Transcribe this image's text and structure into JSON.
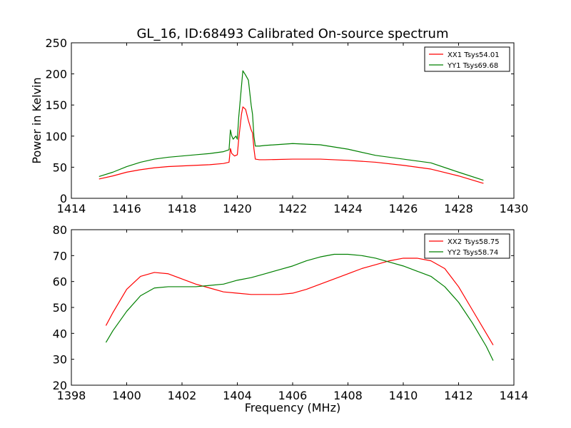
{
  "figure": {
    "title": "GL_16, ID:68493 Calibrated On-source spectrum"
  },
  "chart_data": [
    {
      "type": "line",
      "title": "GL_16, ID:68493 Calibrated On-source spectrum",
      "xlabel": "",
      "ylabel": "Power in Kelvin",
      "xlim": [
        1414,
        1430
      ],
      "ylim": [
        0,
        250
      ],
      "xticks": [
        1414,
        1416,
        1418,
        1420,
        1422,
        1424,
        1426,
        1428,
        1430
      ],
      "yticks": [
        0,
        50,
        100,
        150,
        200,
        250
      ],
      "grid": false,
      "legend_position": "top-right",
      "series": [
        {
          "name": "XX1 Tsys54.01",
          "color": "#ff0000",
          "points": [
            [
              1415.0,
              31
            ],
            [
              1415.5,
              36
            ],
            [
              1416.0,
              42
            ],
            [
              1416.5,
              46
            ],
            [
              1417.0,
              49
            ],
            [
              1417.5,
              51
            ],
            [
              1418.0,
              52
            ],
            [
              1418.5,
              53
            ],
            [
              1419.0,
              54
            ],
            [
              1419.5,
              56
            ],
            [
              1419.7,
              58
            ],
            [
              1419.75,
              80
            ],
            [
              1419.8,
              72
            ],
            [
              1419.9,
              68
            ],
            [
              1420.0,
              70
            ],
            [
              1420.05,
              95
            ],
            [
              1420.15,
              135
            ],
            [
              1420.2,
              147
            ],
            [
              1420.3,
              143
            ],
            [
              1420.4,
              125
            ],
            [
              1420.5,
              110
            ],
            [
              1420.55,
              105
            ],
            [
              1420.6,
              80
            ],
            [
              1420.65,
              63
            ],
            [
              1420.8,
              62
            ],
            [
              1421.0,
              62
            ],
            [
              1422.0,
              63
            ],
            [
              1423.0,
              63
            ],
            [
              1424.0,
              61
            ],
            [
              1425.0,
              58
            ],
            [
              1426.0,
              53
            ],
            [
              1427.0,
              47
            ],
            [
              1428.0,
              36
            ],
            [
              1428.9,
              24
            ]
          ]
        },
        {
          "name": "YY1 Tsys69.68",
          "color": "#008000",
          "points": [
            [
              1415.0,
              35
            ],
            [
              1415.5,
              42
            ],
            [
              1416.0,
              51
            ],
            [
              1416.5,
              58
            ],
            [
              1417.0,
              63
            ],
            [
              1417.5,
              66
            ],
            [
              1418.0,
              68
            ],
            [
              1418.5,
              70
            ],
            [
              1419.0,
              72
            ],
            [
              1419.5,
              75
            ],
            [
              1419.7,
              78
            ],
            [
              1419.75,
              110
            ],
            [
              1419.8,
              100
            ],
            [
              1419.85,
              95
            ],
            [
              1419.95,
              100
            ],
            [
              1420.0,
              95
            ],
            [
              1420.05,
              130
            ],
            [
              1420.15,
              180
            ],
            [
              1420.2,
              205
            ],
            [
              1420.3,
              198
            ],
            [
              1420.4,
              190
            ],
            [
              1420.5,
              150
            ],
            [
              1420.55,
              135
            ],
            [
              1420.6,
              100
            ],
            [
              1420.65,
              84
            ],
            [
              1420.8,
              84
            ],
            [
              1421.0,
              85
            ],
            [
              1422.0,
              88
            ],
            [
              1423.0,
              86
            ],
            [
              1424.0,
              79
            ],
            [
              1425.0,
              69
            ],
            [
              1426.0,
              63
            ],
            [
              1427.0,
              57
            ],
            [
              1428.0,
              42
            ],
            [
              1428.9,
              29
            ]
          ]
        }
      ]
    },
    {
      "type": "line",
      "title": "",
      "xlabel": "Frequency (MHz)",
      "ylabel": "",
      "xlim": [
        1398,
        1414
      ],
      "ylim": [
        20,
        80
      ],
      "xticks": [
        1398,
        1400,
        1402,
        1404,
        1406,
        1408,
        1410,
        1412,
        1414
      ],
      "yticks": [
        20,
        30,
        40,
        50,
        60,
        70,
        80
      ],
      "grid": false,
      "legend_position": "top-right",
      "series": [
        {
          "name": "XX2 Tsys58.75",
          "color": "#ff0000",
          "points": [
            [
              1399.25,
              43
            ],
            [
              1399.5,
              48
            ],
            [
              1400.0,
              57
            ],
            [
              1400.5,
              62
            ],
            [
              1401.0,
              63.5
            ],
            [
              1401.5,
              63
            ],
            [
              1402.0,
              61
            ],
            [
              1402.5,
              59
            ],
            [
              1403.0,
              57.5
            ],
            [
              1403.5,
              56
            ],
            [
              1404.0,
              55.5
            ],
            [
              1404.5,
              55
            ],
            [
              1405.0,
              55
            ],
            [
              1405.5,
              55
            ],
            [
              1406.0,
              55.5
            ],
            [
              1406.5,
              57
            ],
            [
              1407.0,
              59
            ],
            [
              1407.5,
              61
            ],
            [
              1408.0,
              63
            ],
            [
              1408.5,
              65
            ],
            [
              1409.0,
              66.5
            ],
            [
              1409.5,
              68
            ],
            [
              1410.0,
              69
            ],
            [
              1410.5,
              69
            ],
            [
              1411.0,
              68
            ],
            [
              1411.5,
              65
            ],
            [
              1412.0,
              58
            ],
            [
              1412.5,
              49
            ],
            [
              1413.0,
              40
            ],
            [
              1413.25,
              35.5
            ]
          ]
        },
        {
          "name": "YY2 Tsys58.74",
          "color": "#008000",
          "points": [
            [
              1399.25,
              36.5
            ],
            [
              1399.5,
              41
            ],
            [
              1400.0,
              48.5
            ],
            [
              1400.5,
              54.5
            ],
            [
              1401.0,
              57.5
            ],
            [
              1401.5,
              58
            ],
            [
              1402.0,
              58
            ],
            [
              1402.5,
              58
            ],
            [
              1403.0,
              58.5
            ],
            [
              1403.5,
              59
            ],
            [
              1404.0,
              60.5
            ],
            [
              1404.5,
              61.5
            ],
            [
              1405.0,
              63
            ],
            [
              1405.5,
              64.5
            ],
            [
              1406.0,
              66
            ],
            [
              1406.5,
              68
            ],
            [
              1407.0,
              69.5
            ],
            [
              1407.5,
              70.5
            ],
            [
              1408.0,
              70.5
            ],
            [
              1408.5,
              70
            ],
            [
              1409.0,
              69
            ],
            [
              1409.5,
              67.5
            ],
            [
              1410.0,
              66
            ],
            [
              1410.5,
              64
            ],
            [
              1411.0,
              62
            ],
            [
              1411.5,
              58
            ],
            [
              1412.0,
              52
            ],
            [
              1412.5,
              44
            ],
            [
              1413.0,
              35
            ],
            [
              1413.25,
              29.5
            ]
          ]
        }
      ]
    }
  ]
}
